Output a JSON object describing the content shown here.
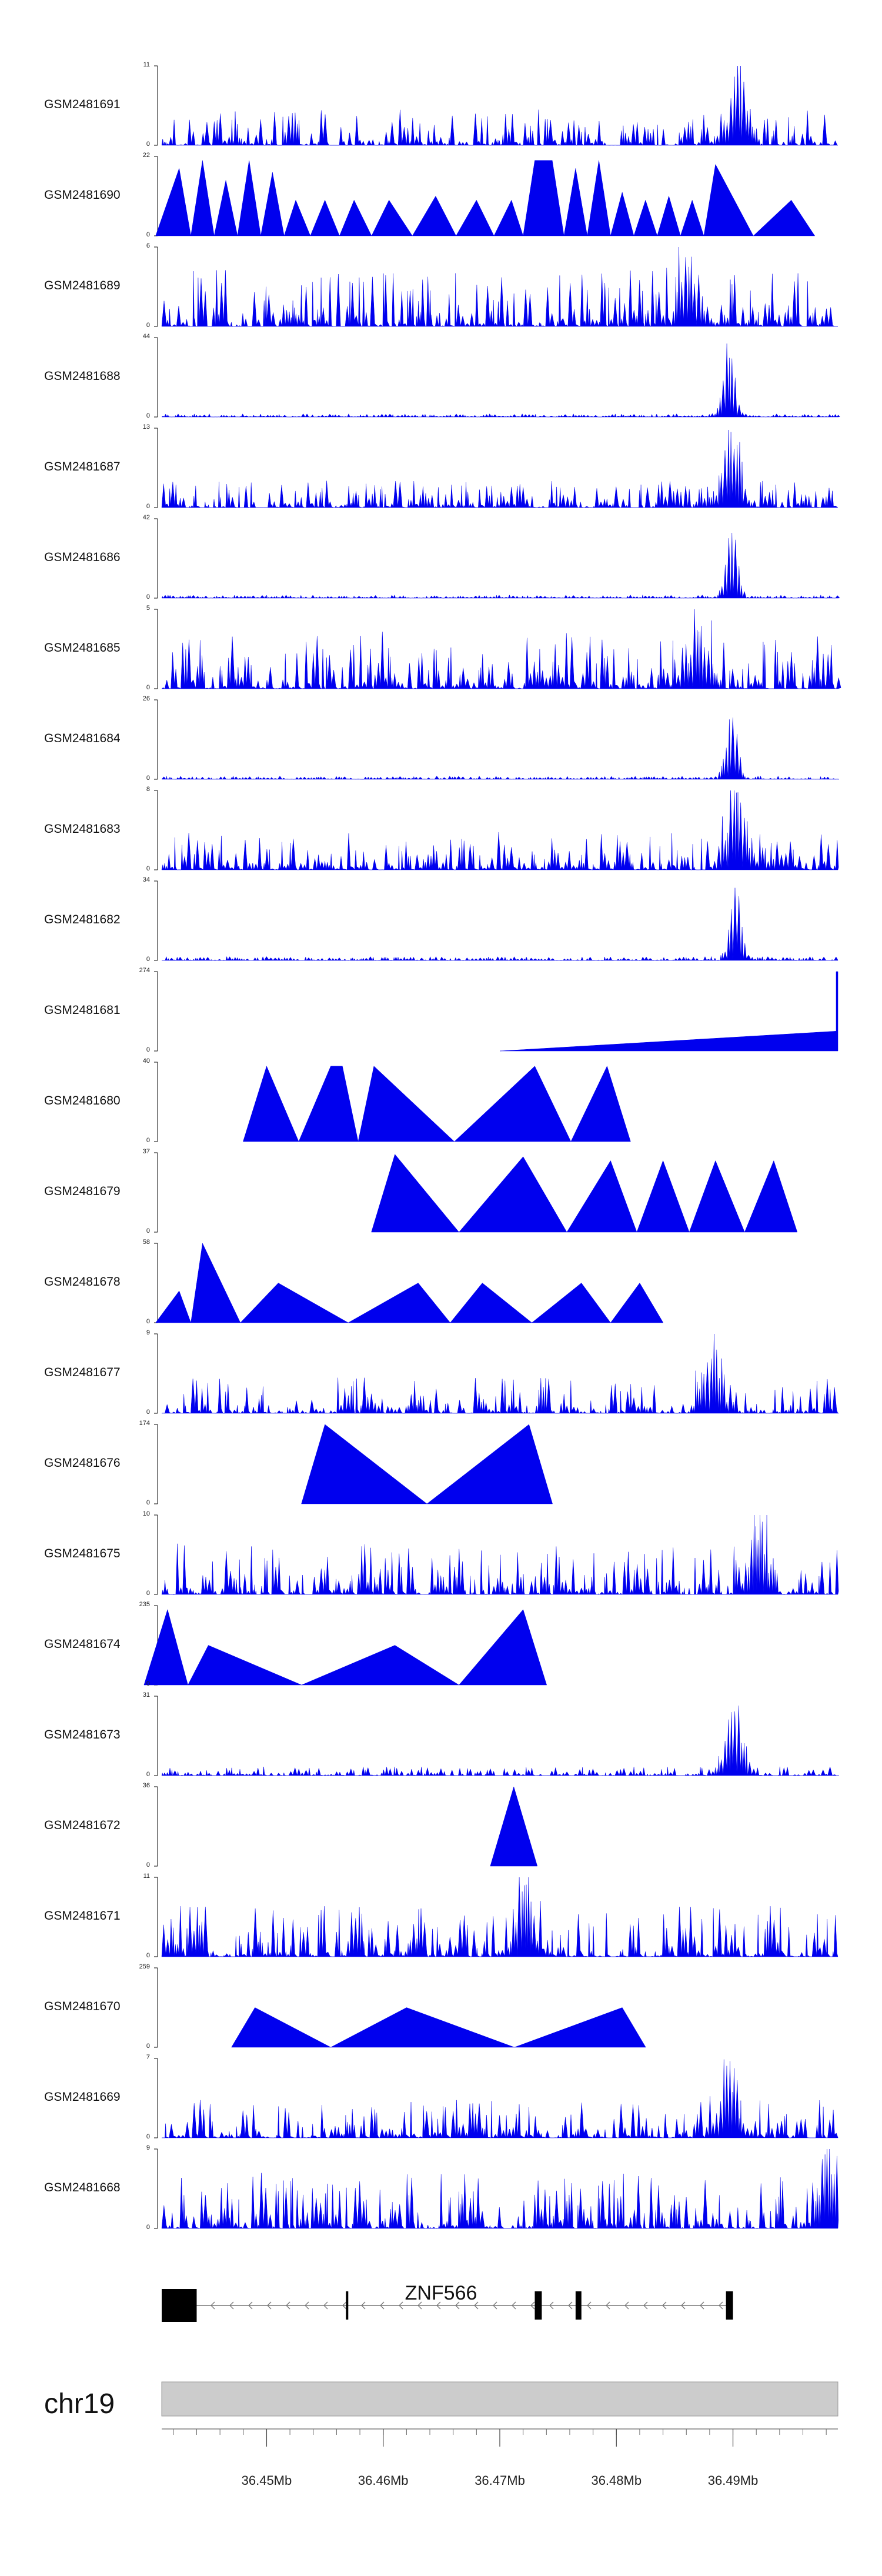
{
  "chart_data": {
    "type": "area",
    "title": "",
    "xlabel": "",
    "ylabel": "",
    "x_range_mb": [
      36.441,
      36.499
    ],
    "color": "#0000ee",
    "tracks": [
      {
        "name": "GSM2481691",
        "max": 11,
        "style": "spiky",
        "peak_at_mb": 36.4904,
        "peak_frac": 1.0,
        "base_frac": 0.28
      },
      {
        "name": "GSM2481690",
        "max": 22,
        "style": "triangles",
        "peaks_mb": [
          36.4425,
          36.4445,
          36.4465,
          36.4485,
          36.4505,
          36.4525,
          36.455,
          36.4575,
          36.4605,
          36.4645,
          36.468,
          36.471,
          36.473,
          36.4745,
          36.4765,
          36.4785,
          36.4805,
          36.4825,
          36.4845,
          36.4865,
          36.4885,
          36.495
        ],
        "peak_fracs": [
          0.85,
          0.95,
          0.7,
          0.95,
          0.8,
          0.45,
          0.45,
          0.45,
          0.45,
          0.5,
          0.45,
          0.45,
          0.95,
          0.95,
          0.85,
          0.95,
          0.55,
          0.45,
          0.5,
          0.45,
          0.9,
          0.45
        ]
      },
      {
        "name": "GSM2481689",
        "max": 6,
        "style": "spiky",
        "peak_at_mb": 36.486,
        "peak_frac": 0.9,
        "base_frac": 0.45
      },
      {
        "name": "GSM2481688",
        "max": 44,
        "style": "peak",
        "peak_at_mb": 36.4895,
        "peak_frac": 1.0,
        "base_frac": 0.04
      },
      {
        "name": "GSM2481687",
        "max": 13,
        "style": "spiky",
        "peak_at_mb": 36.4897,
        "peak_frac": 1.0,
        "base_frac": 0.22
      },
      {
        "name": "GSM2481686",
        "max": 42,
        "style": "peak",
        "peak_at_mb": 36.4898,
        "peak_frac": 1.0,
        "base_frac": 0.04
      },
      {
        "name": "GSM2481685",
        "max": 5,
        "style": "spiky",
        "peak_at_mb": 36.487,
        "peak_frac": 0.95,
        "base_frac": 0.45
      },
      {
        "name": "GSM2481684",
        "max": 26,
        "style": "peak",
        "peak_at_mb": 36.4898,
        "peak_frac": 1.0,
        "base_frac": 0.04
      },
      {
        "name": "GSM2481683",
        "max": 8,
        "style": "spiky",
        "peak_at_mb": 36.49,
        "peak_frac": 0.95,
        "base_frac": 0.3
      },
      {
        "name": "GSM2481682",
        "max": 34,
        "style": "peak",
        "peak_at_mb": 36.4901,
        "peak_frac": 1.0,
        "base_frac": 0.05
      },
      {
        "name": "GSM2481681",
        "max": 274,
        "style": "ramp",
        "ramp_start_mb": 36.47,
        "ramp_end_mb": 36.499,
        "ramp_frac": 0.25
      },
      {
        "name": "GSM2481680",
        "max": 40,
        "style": "triangles",
        "peaks_mb": [
          36.45,
          36.4555,
          36.4565,
          36.4592,
          36.473,
          36.4792
        ],
        "peak_fracs": [
          0.95,
          0.95,
          0.95,
          0.95,
          0.95,
          0.95
        ]
      },
      {
        "name": "GSM2481679",
        "max": 37,
        "style": "triangles",
        "peaks_mb": [
          36.461,
          36.472,
          36.4795,
          36.484,
          36.4885,
          36.4935
        ],
        "peak_fracs": [
          0.98,
          0.95,
          0.9,
          0.9,
          0.9,
          0.9
        ]
      },
      {
        "name": "GSM2481678",
        "max": 58,
        "style": "triangles",
        "peaks_mb": [
          36.4425,
          36.4445,
          36.451,
          36.463,
          36.4685,
          36.477,
          36.482
        ],
        "peak_fracs": [
          0.4,
          1.0,
          0.5,
          0.5,
          0.5,
          0.5,
          0.5
        ]
      },
      {
        "name": "GSM2481677",
        "max": 9,
        "style": "spiky",
        "peak_at_mb": 36.488,
        "peak_frac": 0.95,
        "base_frac": 0.28
      },
      {
        "name": "GSM2481676",
        "max": 174,
        "style": "triangles",
        "peaks_mb": [
          36.455,
          36.4725
        ],
        "peak_fracs": [
          1.0,
          1.0
        ]
      },
      {
        "name": "GSM2481675",
        "max": 10,
        "style": "spiky",
        "peak_at_mb": 36.492,
        "peak_frac": 0.95,
        "base_frac": 0.4
      },
      {
        "name": "GSM2481674",
        "max": 235,
        "style": "triangles",
        "peaks_mb": [
          36.4415,
          36.445,
          36.461,
          36.472
        ],
        "peak_fracs": [
          0.95,
          0.5,
          0.5,
          0.95
        ]
      },
      {
        "name": "GSM2481673",
        "max": 31,
        "style": "spiky",
        "peak_at_mb": 36.49,
        "peak_frac": 0.95,
        "base_frac": 0.07
      },
      {
        "name": "GSM2481672",
        "max": 36,
        "style": "triangles",
        "peaks_mb": [
          36.4712
        ],
        "peak_fracs": [
          1.0
        ]
      },
      {
        "name": "GSM2481671",
        "max": 11,
        "style": "spiky",
        "peak_at_mb": 36.472,
        "peak_frac": 0.95,
        "base_frac": 0.4
      },
      {
        "name": "GSM2481670",
        "max": 259,
        "style": "triangles",
        "peaks_mb": [
          36.449,
          36.462,
          36.4805
        ],
        "peak_fracs": [
          0.5,
          0.5,
          0.5
        ]
      },
      {
        "name": "GSM2481669",
        "max": 7,
        "style": "spiky",
        "peak_at_mb": 36.4895,
        "peak_frac": 1.0,
        "base_frac": 0.3
      },
      {
        "name": "GSM2481668",
        "max": 9,
        "style": "spiky",
        "peak_at_mb": 36.498,
        "peak_frac": 0.95,
        "base_frac": 0.45
      }
    ],
    "gene": {
      "name": "ZNF566",
      "strand": "-",
      "tx_start_mb": 36.441,
      "tx_end_mb": 36.49,
      "exons_mb": [
        [
          36.441,
          36.444
        ],
        [
          36.4568,
          36.457
        ],
        [
          36.473,
          36.4736
        ],
        [
          36.4765,
          36.477
        ],
        [
          36.4894,
          36.49
        ]
      ]
    },
    "chromosome": "chr19",
    "ticks_mb": [
      "36.45Mb",
      "36.46Mb",
      "36.47Mb",
      "36.48Mb",
      "36.49Mb"
    ]
  },
  "axis_zero_label": "0"
}
